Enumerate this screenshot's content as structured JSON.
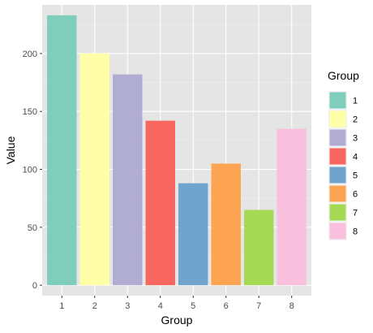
{
  "chart_data": {
    "type": "bar",
    "categories": [
      "1",
      "2",
      "3",
      "4",
      "5",
      "6",
      "7",
      "8"
    ],
    "values": [
      233,
      200,
      182,
      142,
      88,
      105,
      65,
      135
    ],
    "colors": [
      "#7fcdbb",
      "#ffffa8",
      "#b0acd2",
      "#f8675f",
      "#70a4cc",
      "#fda453",
      "#a6da56",
      "#f9c0dd"
    ],
    "xlabel": "Group",
    "ylabel": "Value",
    "ylim": [
      -9,
      242
    ],
    "yticks": [
      0,
      50,
      100,
      150,
      200
    ],
    "ytick_labels": [
      "0",
      "50",
      "100",
      "150",
      "200"
    ],
    "grid": true,
    "background": "#e5e5e5",
    "legend": {
      "title": "Group",
      "placement": "right",
      "labels": [
        "1",
        "2",
        "3",
        "4",
        "5",
        "6",
        "7",
        "8"
      ]
    }
  }
}
